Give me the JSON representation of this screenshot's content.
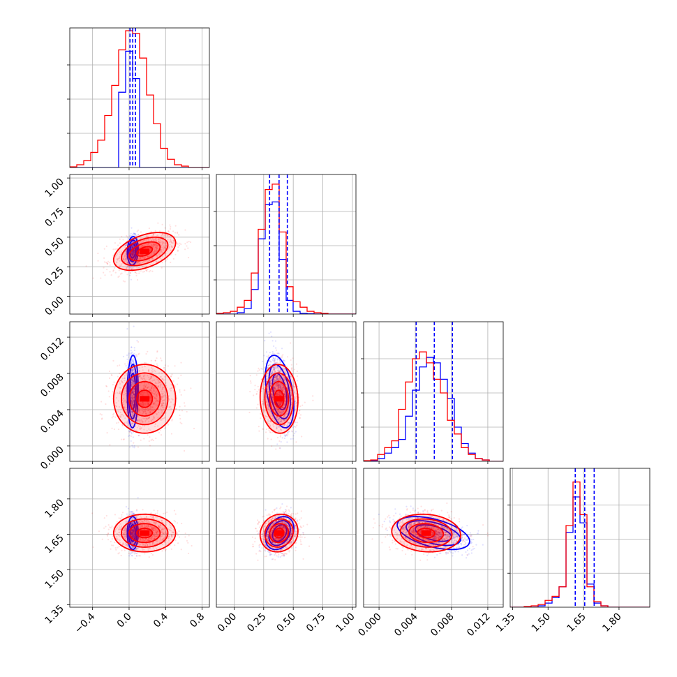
{
  "chart_data": {
    "type": "scatter",
    "chart_kind": "corner-plot",
    "grid": true,
    "colors": {
      "series_a": "#0000ff",
      "series_b": "#ff0000"
    },
    "quantile_lines": "dashed",
    "parameters": [
      {
        "index": 0,
        "range": [
          -0.65,
          0.88
        ],
        "ticks": [
          -0.4,
          0.0,
          0.4,
          0.8
        ],
        "tick_labels": [
          "−0.4",
          "0.0",
          "0.4",
          "0.8"
        ],
        "mean_a": 0.04,
        "sd_a": 0.03,
        "mean_b": 0.17,
        "sd_b": 0.17,
        "quantiles_a": [
          0.01,
          0.04,
          0.07
        ]
      },
      {
        "index": 1,
        "range": [
          -0.15,
          1.03
        ],
        "ticks": [
          0.0,
          0.25,
          0.5,
          0.75,
          1.0
        ],
        "tick_labels": [
          "0.00",
          "0.25",
          "0.50",
          "0.75",
          "1.00"
        ],
        "mean_a": 0.385,
        "sd_a": 0.06,
        "mean_b": 0.38,
        "sd_b": 0.08,
        "quantiles_a": [
          0.3,
          0.38,
          0.45
        ]
      },
      {
        "index": 2,
        "range": [
          -0.0017,
          0.0137
        ],
        "ticks": [
          0.0,
          0.004,
          0.008,
          0.012
        ],
        "tick_labels": [
          "0.000",
          "0.004",
          "0.008",
          "0.012"
        ],
        "mean_a": 0.006,
        "sd_a": 0.002,
        "mean_b": 0.0052,
        "sd_b": 0.0019,
        "quantiles_a": [
          0.0041,
          0.0061,
          0.0081
        ]
      },
      {
        "index": 3,
        "range": [
          1.34,
          1.93
        ],
        "ticks": [
          1.35,
          1.5,
          1.65,
          1.8
        ],
        "tick_labels": [
          "1.35",
          "1.50",
          "1.65",
          "1.80"
        ],
        "mean_a": 1.655,
        "sd_a": 0.035,
        "mean_b": 1.655,
        "sd_b": 0.04,
        "quantiles_a": [
          1.615,
          1.655,
          1.695
        ]
      }
    ],
    "correlations_a": {
      "0-1": 0.1,
      "0-2": 0.05,
      "1-2": -0.4,
      "0-3": 0.0,
      "1-3": 0.3,
      "2-3": -0.5
    },
    "correlations_b": {
      "0-1": 0.45,
      "0-2": 0.0,
      "1-2": -0.05,
      "0-3": 0.0,
      "1-3": 0.1,
      "2-3": -0.1
    },
    "histograms": {
      "0": {
        "a": [
          0,
          0,
          0,
          0,
          0,
          0,
          0,
          0.55,
          0.85,
          0.65,
          0,
          0,
          0,
          0,
          0,
          0,
          0,
          0,
          0,
          0
        ],
        "b": [
          0.005,
          0.02,
          0.05,
          0.11,
          0.2,
          0.38,
          0.6,
          0.86,
          1.0,
          0.98,
          0.8,
          0.53,
          0.32,
          0.14,
          0.06,
          0.02,
          0.01,
          0,
          0,
          0
        ]
      },
      "1": {
        "a": [
          0,
          0,
          0,
          0.01,
          0.04,
          0.18,
          0.55,
          0.8,
          0.82,
          0.4,
          0.1,
          0.02,
          0.005,
          0.002,
          0,
          0,
          0,
          0,
          0,
          0
        ],
        "b": [
          0.005,
          0.01,
          0.02,
          0.05,
          0.1,
          0.3,
          0.62,
          0.91,
          0.95,
          0.6,
          0.2,
          0.09,
          0.05,
          0.02,
          0.01,
          0.005,
          0,
          0,
          0,
          0
        ]
      },
      "2": {
        "a": [
          0,
          0.005,
          0.02,
          0.06,
          0.1,
          0.16,
          0.33,
          0.52,
          0.69,
          0.76,
          0.72,
          0.6,
          0.46,
          0.25,
          0.13,
          0.06,
          0.02,
          0.01,
          0,
          0
        ],
        "b": [
          0.005,
          0.01,
          0.05,
          0.1,
          0.15,
          0.38,
          0.58,
          0.75,
          0.8,
          0.72,
          0.6,
          0.5,
          0.3,
          0.2,
          0.1,
          0.05,
          0.02,
          0.01,
          0,
          0
        ]
      },
      "3": {
        "a": [
          0,
          0,
          0,
          0,
          0.01,
          0.03,
          0.07,
          0.15,
          0.55,
          0.81,
          0.62,
          0.17,
          0.03,
          0.01,
          0,
          0,
          0,
          0,
          0,
          0
        ],
        "b": [
          0,
          0,
          0.005,
          0.01,
          0.02,
          0.05,
          0.08,
          0.15,
          0.6,
          0.92,
          0.68,
          0.15,
          0.04,
          0.01,
          0,
          0,
          0,
          0,
          0,
          0
        ]
      }
    }
  }
}
